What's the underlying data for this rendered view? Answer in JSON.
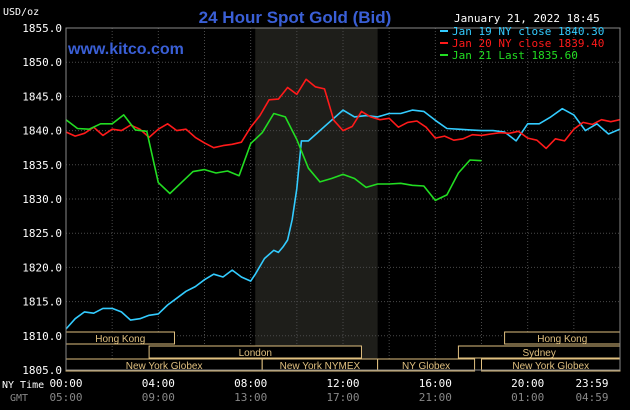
{
  "title": "24 Hour Spot Gold (Bid)",
  "website": "www.kitco.com",
  "timestamp": "January 21, 2022 18:45",
  "y_unit": "USD/oz",
  "colors": {
    "background": "#000000",
    "plot_background": "#000000",
    "market_shade": "#1e1e1a",
    "grid": "#4a4a4a",
    "axis_text": "#ffffff",
    "title": "#3a5fd6",
    "website": "#3a5fd6",
    "sessions": "#e0c080",
    "series_jan19": "#33ccff",
    "series_jan20": "#ff1a1a",
    "series_jan21": "#22dd22"
  },
  "chart_data": {
    "type": "line",
    "title": "24 Hour Spot Gold (Bid)",
    "ylabel": "USD/oz",
    "ylim": [
      1805.0,
      1855.0
    ],
    "y_ticks": [
      "1855.0",
      "1850.0",
      "1845.0",
      "1840.0",
      "1835.0",
      "1830.0",
      "1825.0",
      "1820.0",
      "1815.0",
      "1810.0",
      "1805.0"
    ],
    "y_tick_values": [
      1855,
      1850,
      1845,
      1840,
      1835,
      1830,
      1825,
      1820,
      1815,
      1810,
      1805
    ],
    "xlim": [
      0,
      24
    ],
    "x_tick_hours": [
      0,
      4,
      8,
      12,
      16,
      20,
      24
    ],
    "x_ticks_ny": [
      "00:00",
      "04:00",
      "08:00",
      "12:00",
      "16:00",
      "20:00",
      "23:59"
    ],
    "x_ticks_gmt": [
      "05:00",
      "09:00",
      "13:00",
      "17:00",
      "21:00",
      "01:00",
      "04:59"
    ],
    "x_label_ny": "NY Time",
    "x_label_gmt": "GMT",
    "shaded_range_hours": [
      8.2,
      13.5
    ],
    "grid": true,
    "legend_position": "top-right",
    "legend": [
      {
        "label": "Jan 19 NY close 1840.30",
        "color": "#33ccff"
      },
      {
        "label": "Jan 20 NY close 1839.40",
        "color": "#ff1a1a"
      },
      {
        "label": "Jan 21 Last 1835.60",
        "color": "#22dd22"
      }
    ],
    "series": [
      {
        "name": "Jan 19 NY close 1840.30",
        "color": "#33ccff",
        "x": [
          0,
          0.4,
          0.8,
          1.2,
          1.6,
          2,
          2.4,
          2.8,
          3.2,
          3.6,
          4,
          4.4,
          4.8,
          5.2,
          5.6,
          6,
          6.4,
          6.8,
          7.2,
          7.6,
          8,
          8.2,
          8.6,
          9,
          9.2,
          9.4,
          9.6,
          9.8,
          10,
          10.2,
          10.5,
          11,
          11.5,
          12,
          12.5,
          13,
          13.5,
          14,
          14.5,
          15,
          15.5,
          16,
          16.5,
          17,
          17.5,
          18,
          18.5,
          19,
          19.5,
          20,
          20.5,
          21,
          21.5,
          22,
          22.5,
          23,
          23.5,
          23.99
        ],
        "y": [
          1811,
          1812.5,
          1813.5,
          1813.3,
          1814,
          1814,
          1813.5,
          1812.3,
          1812.5,
          1813,
          1813.2,
          1814.5,
          1815.5,
          1816.5,
          1817.2,
          1818.2,
          1819,
          1818.6,
          1819.6,
          1818.6,
          1818,
          1819,
          1821.3,
          1822.5,
          1822.2,
          1823,
          1824,
          1827,
          1831.5,
          1838.5,
          1838.5,
          1840,
          1841.5,
          1843,
          1842,
          1842.2,
          1842,
          1842.5,
          1842.5,
          1843,
          1842.8,
          1841.5,
          1840.3,
          1840.2,
          1840.1,
          1840,
          1840,
          1839.8,
          1838.5,
          1841,
          1841,
          1842,
          1843.2,
          1842.3,
          1840,
          1841,
          1839.5,
          1840.2
        ]
      },
      {
        "name": "Jan 20 NY close 1839.40",
        "color": "#ff1a1a",
        "x": [
          0,
          0.4,
          0.8,
          1.2,
          1.6,
          2,
          2.4,
          2.8,
          3.2,
          3.6,
          4,
          4.4,
          4.8,
          5.2,
          5.6,
          6,
          6.4,
          6.8,
          7.2,
          7.6,
          8,
          8.4,
          8.8,
          9.2,
          9.6,
          10,
          10.4,
          10.8,
          11.2,
          11.6,
          12,
          12.4,
          12.8,
          13.2,
          13.6,
          14,
          14.4,
          14.8,
          15.2,
          15.6,
          16,
          16.4,
          16.8,
          17.2,
          17.6,
          18,
          18.4,
          18.8,
          19.2,
          19.6,
          20,
          20.4,
          20.8,
          21.2,
          21.6,
          22,
          22.4,
          22.8,
          23.2,
          23.6,
          23.99
        ],
        "y": [
          1839.8,
          1839.2,
          1839.6,
          1840.5,
          1839.3,
          1840.2,
          1840,
          1840.8,
          1840.2,
          1839,
          1840.2,
          1841,
          1840,
          1840.2,
          1839,
          1838.2,
          1837.5,
          1837.8,
          1838,
          1838.3,
          1840.5,
          1842.2,
          1844.5,
          1844.6,
          1846.3,
          1845.3,
          1847.5,
          1846.4,
          1846.1,
          1841.5,
          1840,
          1840.6,
          1842.8,
          1842,
          1841.6,
          1841.8,
          1840.5,
          1841.2,
          1841.4,
          1840.5,
          1838.9,
          1839.2,
          1838.6,
          1838.8,
          1839.4,
          1839.3,
          1839.5,
          1839.7,
          1839.6,
          1839.9,
          1838.9,
          1838.6,
          1837.4,
          1838.8,
          1838.5,
          1840.2,
          1841.2,
          1840.9,
          1841.6,
          1841.3,
          1841.6
        ]
      },
      {
        "name": "Jan 21 Last 1835.60",
        "color": "#22dd22",
        "x": [
          0,
          0.5,
          1,
          1.5,
          2,
          2.5,
          3,
          3.5,
          4,
          4.5,
          5,
          5.5,
          6,
          6.5,
          7,
          7.5,
          8,
          8.5,
          9,
          9.5,
          10,
          10.5,
          11,
          11.5,
          12,
          12.5,
          13,
          13.5,
          14,
          14.5,
          15,
          15.5,
          16,
          16.5,
          17,
          17.5,
          18
        ],
        "y": [
          1841.6,
          1840.3,
          1840.2,
          1841,
          1841,
          1842.3,
          1840.1,
          1839.9,
          1832.4,
          1830.8,
          1832.4,
          1834,
          1834.3,
          1833.8,
          1834.1,
          1833.4,
          1838.1,
          1839.7,
          1842.5,
          1842,
          1838.7,
          1834.5,
          1832.5,
          1833,
          1833.6,
          1833,
          1831.7,
          1832.2,
          1832.2,
          1832.3,
          1832,
          1831.9,
          1829.8,
          1830.6,
          1833.8,
          1835.7,
          1835.6
        ]
      }
    ]
  },
  "sessions": [
    {
      "label": "Hong Kong",
      "start": 0,
      "end": 4.7
    },
    {
      "label": "London",
      "start": 3.6,
      "end": 12.8
    },
    {
      "label": "New York Globex",
      "start": 0,
      "end": 8.5
    },
    {
      "label": "New York NYMEX",
      "start": 8.5,
      "end": 13.5
    },
    {
      "label": "NY Globex",
      "start": 13.5,
      "end": 17.7
    },
    {
      "label": "Hong Kong",
      "start": 19.0,
      "end": 24
    },
    {
      "label": "Sydney",
      "start": 17.0,
      "end": 24
    },
    {
      "label": "New York Globex",
      "start": 18.0,
      "end": 24
    }
  ]
}
